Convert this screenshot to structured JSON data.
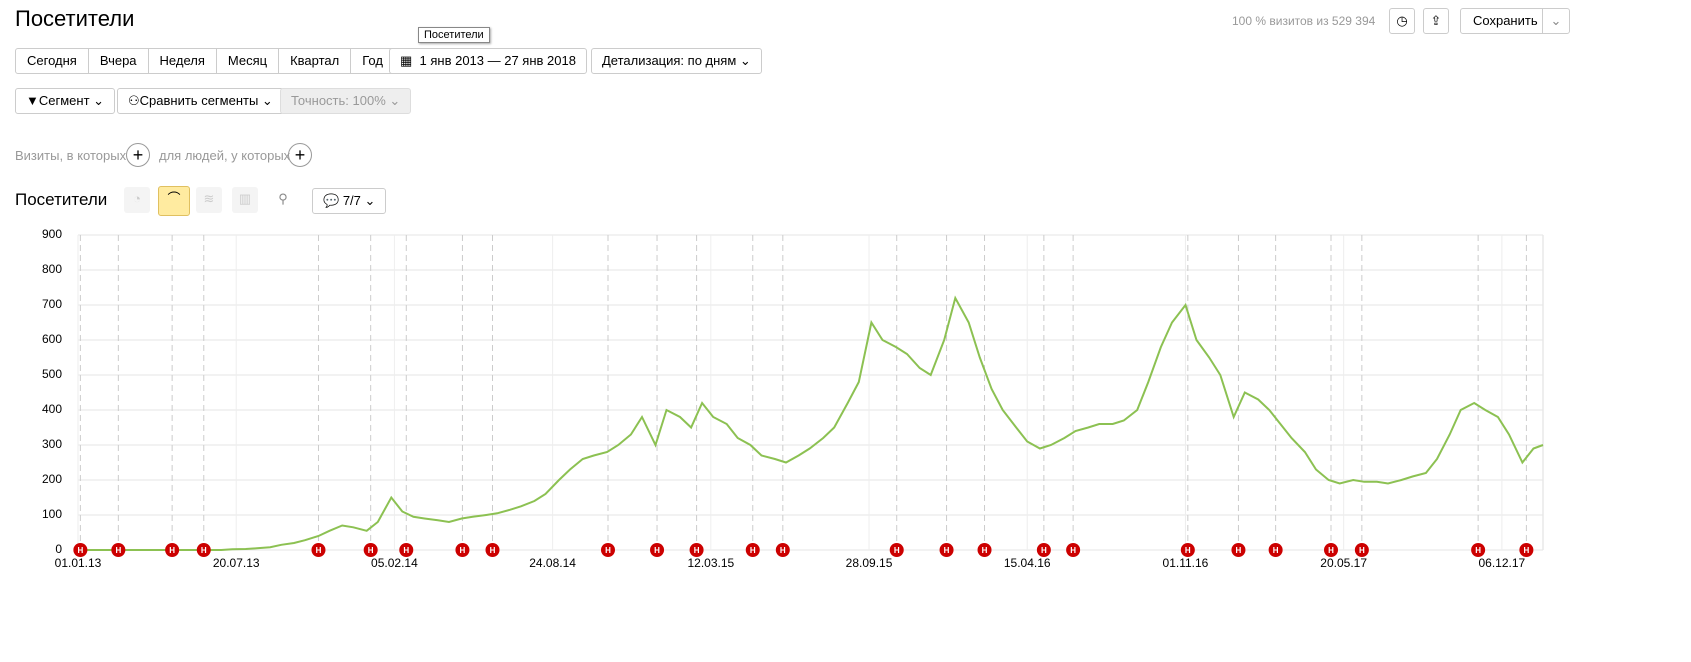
{
  "header": {
    "title": "Посетители",
    "stats": "100 % визитов из 529 394",
    "save": "Сохранить",
    "tooltip": "Посетители"
  },
  "periods": [
    "Сегодня",
    "Вчера",
    "Неделя",
    "Месяц",
    "Квартал",
    "Год"
  ],
  "date_range": "1 янв 2013 — 27 янв 2018",
  "detail": "Детализация: по дням",
  "segment": "Сегмент",
  "compare": "Сравнить сегменты",
  "accuracy": "Точность: 100%",
  "filters": {
    "visits": "Визиты, в которых",
    "people": "для людей, у которых"
  },
  "report": {
    "title": "Посетители",
    "annotations_count": "7/7"
  },
  "chart_data": {
    "type": "line",
    "color": "#8cc152",
    "grid": true,
    "xlim": [
      "01.01.13",
      "27.01.18"
    ],
    "xticks": [
      "01.01.13",
      "20.07.13",
      "05.02.14",
      "24.08.14",
      "12.03.15",
      "28.09.15",
      "15.04.16",
      "01.11.16",
      "20.05.17",
      "06.12.17"
    ],
    "ylim": [
      0,
      900
    ],
    "yticks": [
      0,
      100,
      200,
      300,
      400,
      500,
      600,
      700,
      800,
      900
    ],
    "annotations": {
      "label": "Н",
      "color": "#cc0000",
      "dates": [
        "04.01.13",
        "21.02.13",
        "30.04.13",
        "09.06.13",
        "01.11.13",
        "06.01.14",
        "20.02.14",
        "02.05.14",
        "09.06.14",
        "02.11.14",
        "03.01.15",
        "22.02.15",
        "04.05.15",
        "11.06.15",
        "02.11.15",
        "04.01.16",
        "21.02.16",
        "06.05.16",
        "12.06.16",
        "04.11.16",
        "07.01.17",
        "23.02.17",
        "04.05.17",
        "12.06.17",
        "06.11.17",
        "06.01.18"
      ]
    },
    "series": [
      {
        "name": "Посетители",
        "x": [
          "01.01.13",
          "15.01.13",
          "01.02.13",
          "15.02.13",
          "01.03.13",
          "15.03.13",
          "01.04.13",
          "15.04.13",
          "01.05.13",
          "15.05.13",
          "01.06.13",
          "15.06.13",
          "01.07.13",
          "15.07.13",
          "01.08.13",
          "15.08.13",
          "01.09.13",
          "15.09.13",
          "01.10.13",
          "15.10.13",
          "01.11.13",
          "15.11.13",
          "01.12.13",
          "15.12.13",
          "01.01.14",
          "15.01.14",
          "01.02.14",
          "15.02.14",
          "01.03.14",
          "15.03.14",
          "01.04.14",
          "15.04.14",
          "01.05.14",
          "15.05.14",
          "01.06.14",
          "15.06.14",
          "01.07.14",
          "15.07.14",
          "01.08.14",
          "15.08.14",
          "01.09.14",
          "15.09.14",
          "01.10.14",
          "15.10.14",
          "01.11.14",
          "15.11.14",
          "01.12.14",
          "15.12.14",
          "01.01.15",
          "15.01.15",
          "01.02.15",
          "15.02.15",
          "01.03.15",
          "15.03.15",
          "01.04.15",
          "15.04.15",
          "01.05.15",
          "15.05.15",
          "01.06.15",
          "15.06.15",
          "01.07.15",
          "15.07.15",
          "01.08.15",
          "15.08.15",
          "01.09.15",
          "15.09.15",
          "01.10.15",
          "15.10.15",
          "01.11.15",
          "15.11.15",
          "01.12.15",
          "15.12.15",
          "01.01.16",
          "15.01.16",
          "01.02.16",
          "15.02.16",
          "01.03.16",
          "15.03.16",
          "01.04.16",
          "15.04.16",
          "01.05.16",
          "15.05.16",
          "01.06.16",
          "15.06.16",
          "01.07.16",
          "15.07.16",
          "01.08.16",
          "15.08.16",
          "01.09.16",
          "15.09.16",
          "01.10.16",
          "15.10.16",
          "01.11.16",
          "15.11.16",
          "01.12.16",
          "15.12.16",
          "01.01.17",
          "15.01.17",
          "01.02.17",
          "15.02.17",
          "01.03.17",
          "15.03.17",
          "01.04.17",
          "15.04.17",
          "01.05.17",
          "15.05.17",
          "01.06.17",
          "15.06.17",
          "01.07.17",
          "15.07.17",
          "01.08.17",
          "15.08.17",
          "01.09.17",
          "15.09.17",
          "01.10.17",
          "15.10.17",
          "01.11.17",
          "15.11.17",
          "01.12.17",
          "15.12.17",
          "01.01.18",
          "15.01.18",
          "27.01.18"
        ],
        "values": [
          0,
          0,
          0,
          0,
          0,
          0,
          0,
          0,
          0,
          0,
          0,
          0,
          0,
          2,
          3,
          5,
          8,
          15,
          20,
          28,
          40,
          55,
          70,
          65,
          55,
          80,
          150,
          110,
          95,
          90,
          85,
          80,
          90,
          95,
          100,
          105,
          115,
          125,
          140,
          160,
          200,
          230,
          260,
          270,
          280,
          300,
          330,
          380,
          300,
          400,
          380,
          350,
          420,
          380,
          360,
          320,
          300,
          270,
          260,
          250,
          270,
          290,
          320,
          350,
          420,
          480,
          650,
          600,
          580,
          560,
          520,
          500,
          600,
          720,
          650,
          550,
          460,
          400,
          350,
          310,
          290,
          300,
          320,
          340,
          350,
          360,
          360,
          370,
          400,
          480,
          580,
          650,
          700,
          600,
          550,
          500,
          380,
          450,
          430,
          400,
          360,
          320,
          280,
          230,
          200,
          190,
          200,
          195,
          195,
          190,
          200,
          210,
          220,
          260,
          330,
          400,
          420,
          400,
          380,
          330,
          250,
          290,
          300
        ]
      }
    ]
  }
}
